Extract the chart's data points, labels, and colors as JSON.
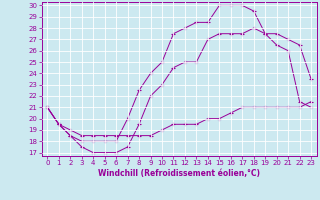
{
  "title": "",
  "xlabel": "Windchill (Refroidissement éolien,°C)",
  "ylabel": "",
  "background_color": "#cce9f0",
  "grid_color": "#ffffff",
  "line_color": "#990099",
  "xlim": [
    -0.5,
    23.5
  ],
  "ylim": [
    16.7,
    30.3
  ],
  "yticks": [
    17,
    18,
    19,
    20,
    21,
    22,
    23,
    24,
    25,
    26,
    27,
    28,
    29,
    30
  ],
  "xticks": [
    0,
    1,
    2,
    3,
    4,
    5,
    6,
    7,
    8,
    9,
    10,
    11,
    12,
    13,
    14,
    15,
    16,
    17,
    18,
    19,
    20,
    21,
    22,
    23
  ],
  "curve1_x": [
    0,
    1,
    2,
    3,
    4,
    5,
    6,
    7,
    8,
    9,
    10,
    11,
    12,
    13,
    14,
    15,
    16,
    17,
    18,
    19,
    20,
    21,
    22,
    23
  ],
  "curve1_y": [
    21,
    19.5,
    18.5,
    17.5,
    17,
    17,
    17,
    17.5,
    19.5,
    22,
    23,
    24.5,
    25,
    25,
    27,
    27.5,
    27.5,
    27.5,
    28,
    27.5,
    27.5,
    27,
    26.5,
    23.5
  ],
  "curve2_x": [
    0,
    1,
    2,
    3,
    4,
    5,
    6,
    7,
    8,
    9,
    10,
    11,
    12,
    13,
    14,
    15,
    16,
    17,
    18,
    19,
    20,
    21,
    22,
    23
  ],
  "curve2_y": [
    21,
    19.5,
    18.5,
    18,
    18,
    18,
    18,
    20,
    22.5,
    24,
    25,
    27.5,
    28,
    28.5,
    28.5,
    30,
    30,
    30,
    29.5,
    27.5,
    26.5,
    26,
    21.5,
    21
  ],
  "curve3_x": [
    0,
    1,
    2,
    3,
    4,
    5,
    6,
    7,
    8,
    9,
    10,
    11,
    12,
    13,
    14,
    15,
    16,
    17,
    18,
    19,
    20,
    21,
    22,
    23
  ],
  "curve3_y": [
    21,
    19.5,
    19,
    18.5,
    18.5,
    18.5,
    18.5,
    18.5,
    18.5,
    18.5,
    19,
    19.5,
    19.5,
    19.5,
    20,
    20,
    20.5,
    21,
    21,
    21,
    21,
    21,
    21,
    21.5
  ],
  "tick_fontsize": 5,
  "xlabel_fontsize": 5.5
}
